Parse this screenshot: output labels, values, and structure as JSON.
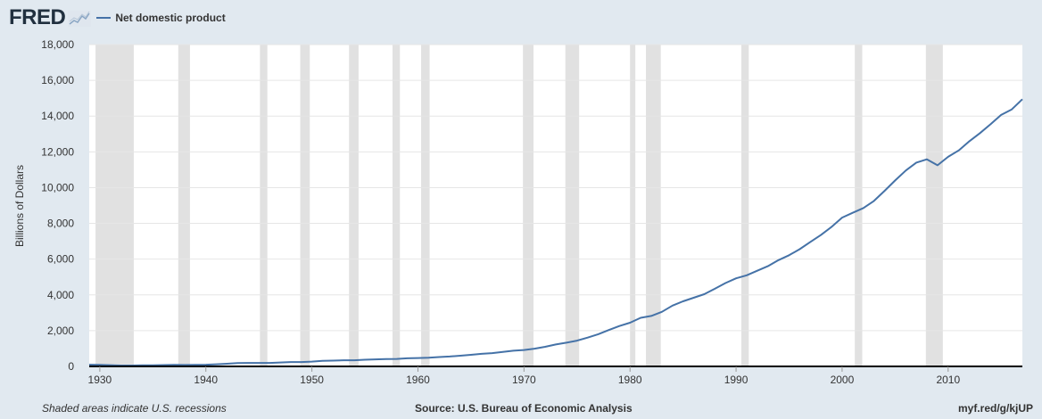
{
  "header": {
    "logo_text": "FRED",
    "logo_icon": "chart-line-icon",
    "series_label": "Net domestic product"
  },
  "footer": {
    "note": "Shaded areas indicate U.S. recessions",
    "source": "Source: U.S. Bureau of Economic Analysis",
    "short_url": "myf.red/g/kjUP"
  },
  "colors": {
    "background": "#e1e9f0",
    "plot_background": "#ffffff",
    "line": "#4572a7",
    "recession": "#e1e1e1",
    "grid": "#e6e6e6",
    "text": "#333333"
  },
  "chart_data": {
    "type": "line",
    "title": "",
    "xlabel": "",
    "ylabel": "Billions of Dollars",
    "xlim": [
      1929,
      2017
    ],
    "ylim": [
      0,
      18000
    ],
    "x_ticks": [
      1930,
      1940,
      1950,
      1960,
      1970,
      1980,
      1990,
      2000,
      2010
    ],
    "y_ticks": [
      0,
      2000,
      4000,
      6000,
      8000,
      10000,
      12000,
      14000,
      16000,
      18000
    ],
    "y_tick_labels": [
      "0",
      "2,000",
      "4,000",
      "6,000",
      "8,000",
      "10,000",
      "12,000",
      "14,000",
      "16,000",
      "18,000"
    ],
    "grid": true,
    "legend": "top-left",
    "recessions": [
      [
        1929.6,
        1933.2
      ],
      [
        1937.4,
        1938.5
      ],
      [
        1945.1,
        1945.8
      ],
      [
        1948.9,
        1949.8
      ],
      [
        1953.5,
        1954.4
      ],
      [
        1957.6,
        1958.3
      ],
      [
        1960.3,
        1961.1
      ],
      [
        1969.9,
        1970.9
      ],
      [
        1973.9,
        1975.2
      ],
      [
        1980.0,
        1980.5
      ],
      [
        1981.5,
        1982.9
      ],
      [
        1990.5,
        1991.2
      ],
      [
        2001.2,
        2001.9
      ],
      [
        2007.9,
        2009.5
      ]
    ],
    "series": [
      {
        "name": "Net domestic product",
        "x": [
          1929,
          1930,
          1931,
          1932,
          1933,
          1934,
          1935,
          1936,
          1937,
          1938,
          1939,
          1940,
          1941,
          1942,
          1943,
          1944,
          1945,
          1946,
          1947,
          1948,
          1949,
          1950,
          1951,
          1952,
          1953,
          1954,
          1955,
          1956,
          1957,
          1958,
          1959,
          1960,
          1961,
          1962,
          1963,
          1964,
          1965,
          1966,
          1967,
          1968,
          1969,
          1970,
          1971,
          1972,
          1973,
          1974,
          1975,
          1976,
          1977,
          1978,
          1979,
          1980,
          1981,
          1982,
          1983,
          1984,
          1985,
          1986,
          1987,
          1988,
          1989,
          1990,
          1991,
          1992,
          1993,
          1994,
          1995,
          1996,
          1997,
          1998,
          1999,
          2000,
          2001,
          2002,
          2003,
          2004,
          2005,
          2006,
          2007,
          2008,
          2009,
          2010,
          2011,
          2012,
          2013,
          2014,
          2015,
          2016,
          2017
        ],
        "y": [
          95,
          83,
          69,
          50,
          48,
          58,
          66,
          77,
          85,
          80,
          86,
          94,
          118,
          152,
          184,
          196,
          196,
          196,
          220,
          245,
          242,
          269,
          310,
          326,
          344,
          345,
          375,
          395,
          415,
          418,
          455,
          471,
          488,
          525,
          553,
          596,
          646,
          704,
          741,
          813,
          876,
          916,
          994,
          1096,
          1226,
          1326,
          1443,
          1613,
          1802,
          2035,
          2259,
          2444,
          2719,
          2823,
          3052,
          3400,
          3640,
          3838,
          4040,
          4345,
          4660,
          4927,
          5098,
          5352,
          5602,
          5942,
          6216,
          6557,
          6960,
          7352,
          7798,
          8321,
          8590,
          8855,
          9254,
          9818,
          10403,
          10955,
          11396,
          11582,
          11251,
          11722,
          12079,
          12596,
          13050,
          13544,
          14065,
          14375,
          14941
        ]
      }
    ]
  }
}
